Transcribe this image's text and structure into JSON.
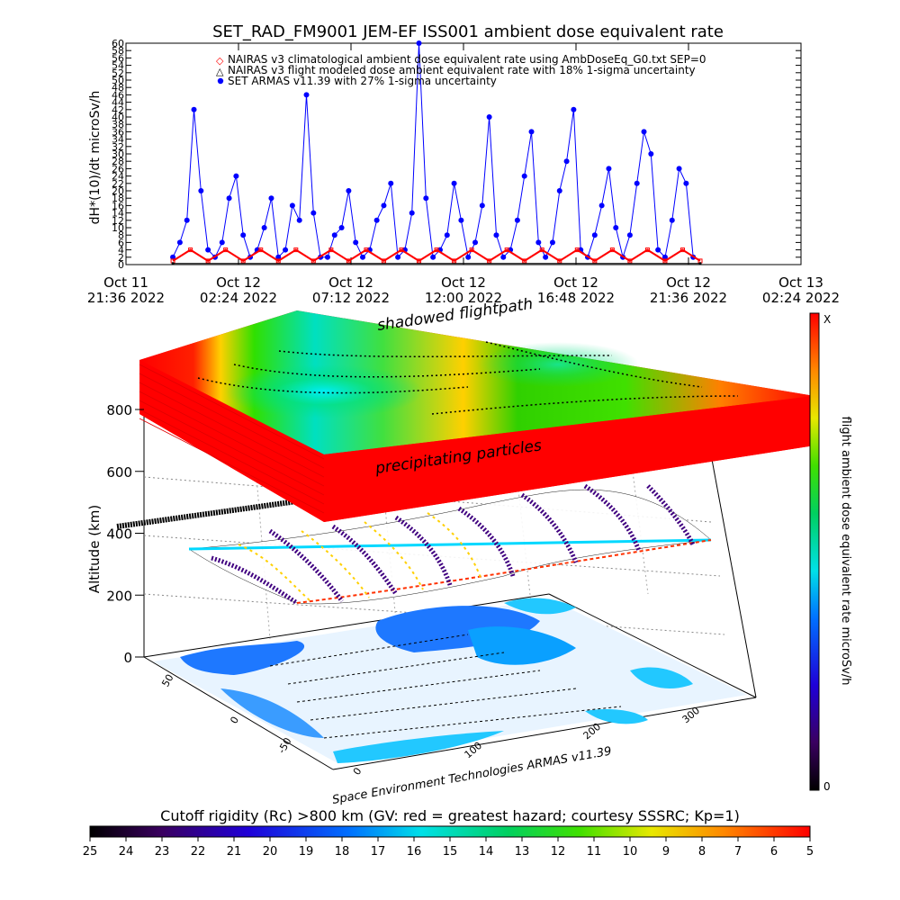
{
  "top_title": "SET_RAD_FM9001  JEM-EF ISS001 ambient dose equivalent rate",
  "chart_data": [
    {
      "type": "line",
      "title": "SET_RAD_FM9001  JEM-EF ISS001 ambient dose equivalent rate",
      "ylabel": "dH*(10)/dt microSv/h",
      "ylim": [
        0,
        60
      ],
      "y_ticks": [
        "0",
        "2",
        "4",
        "6",
        "8",
        "10",
        "12",
        "14",
        "16",
        "18",
        "20",
        "22",
        "24",
        "26",
        "28",
        "30",
        "32",
        "34",
        "36",
        "38",
        "40",
        "42",
        "44",
        "46",
        "48",
        "50",
        "52",
        "54",
        "56",
        "58",
        "60"
      ],
      "x_ticks": [
        {
          "line1": "Oct 11",
          "line2": "21:36 2022"
        },
        {
          "line1": "Oct 12",
          "line2": "02:24 2022"
        },
        {
          "line1": "Oct 12",
          "line2": "07:12 2022"
        },
        {
          "line1": "Oct 12",
          "line2": "12:00 2022"
        },
        {
          "line1": "Oct 12",
          "line2": "16:48 2022"
        },
        {
          "line1": "Oct 12",
          "line2": "21:36 2022"
        },
        {
          "line1": "Oct 13",
          "line2": "02:24 2022"
        }
      ],
      "x_units": "hours since Oct 11 21:36 2022",
      "xlim": [
        0,
        28.8
      ],
      "legend_position": "top",
      "legend": [
        "NAIRAS v3 climatological ambient dose equivalent rate using AmbDoseEq_G0.txt SEP=0",
        "NAIRAS v3 flight modeled dose ambient equivalent rate with 18% 1-sigma uncertainty",
        "SET ARMAS v11.39 with 27% 1-sigma uncertainty"
      ],
      "series": [
        {
          "name": "SET ARMAS v11.39 with 27% 1-sigma uncertainty",
          "color": "#0000ff",
          "x": [
            2.0,
            2.3,
            2.6,
            2.9,
            3.2,
            3.5,
            3.8,
            4.1,
            4.4,
            4.7,
            5.0,
            5.3,
            5.6,
            5.9,
            6.2,
            6.5,
            6.8,
            7.1,
            7.4,
            7.7,
            8.0,
            8.3,
            8.6,
            8.9,
            9.2,
            9.5,
            9.8,
            10.1,
            10.4,
            10.7,
            11.0,
            11.3,
            11.6,
            11.9,
            12.2,
            12.5,
            12.8,
            13.1,
            13.4,
            13.7,
            14.0,
            14.3,
            14.6,
            14.9,
            15.2,
            15.5,
            15.8,
            16.1,
            16.4,
            16.7,
            17.0,
            17.3,
            17.6,
            17.9,
            18.2,
            18.5,
            18.8,
            19.1,
            19.4,
            19.7,
            20.0,
            20.3,
            20.6,
            20.9,
            21.2,
            21.5,
            21.8,
            22.1,
            22.4,
            22.7,
            23.0,
            23.3,
            23.6,
            23.9,
            24.2
          ],
          "y": [
            2,
            6,
            12,
            42,
            20,
            4,
            2,
            6,
            18,
            24,
            8,
            2,
            4,
            10,
            18,
            2,
            4,
            16,
            12,
            46,
            14,
            2,
            2,
            8,
            10,
            20,
            6,
            2,
            4,
            12,
            16,
            22,
            2,
            4,
            14,
            60,
            18,
            2,
            4,
            8,
            22,
            12,
            2,
            6,
            16,
            40,
            8,
            2,
            4,
            12,
            24,
            36,
            6,
            2,
            6,
            20,
            28,
            42,
            4,
            2,
            8,
            16,
            26,
            10,
            2,
            8,
            22,
            36,
            30,
            4,
            2,
            12,
            26,
            22,
            2
          ]
        },
        {
          "name": "NAIRAS v3 flight modeled dose ambient equivalent rate with 18% 1-sigma uncertainty",
          "color": "#ff0000",
          "x": [
            2.0,
            2.75,
            3.5,
            4.25,
            5.0,
            5.75,
            6.5,
            7.25,
            8.0,
            8.75,
            9.5,
            10.25,
            11.0,
            11.75,
            12.5,
            13.25,
            14.0,
            14.75,
            15.5,
            16.25,
            17.0,
            17.75,
            18.5,
            19.25,
            20.0,
            20.75,
            21.5,
            22.25,
            23.0,
            23.75,
            24.5
          ],
          "y": [
            1,
            4,
            1,
            4,
            1,
            4,
            1,
            4,
            1,
            4,
            1,
            4,
            1,
            4,
            1,
            4,
            1,
            4,
            1,
            4,
            1,
            4,
            1,
            4,
            1,
            4,
            1,
            4,
            1,
            4,
            1
          ]
        },
        {
          "name": "NAIRAS v3 climatological ambient dose equivalent rate using AmbDoseEq_G0.txt SEP=0",
          "color": "#000000",
          "x": [
            2.0,
            24.5
          ],
          "y": [
            0.3,
            0.3
          ]
        }
      ]
    },
    {
      "type": "heatmap",
      "title": "",
      "zlabel": "Altitude (km)",
      "z_ticks": [
        "0",
        "200",
        "400",
        "600",
        "800"
      ],
      "lon_ticks": [
        "0",
        "100",
        "200",
        "300"
      ],
      "lat_ticks": [
        "50",
        "0",
        "-50"
      ],
      "annotations": [
        "shadowed flightpath",
        "precipitating particles"
      ],
      "credit": "Space Environment Technologies ARMAS v11.39",
      "colorbar": {
        "label": "flight ambient dose equivalent rate microSv/h",
        "min_label": "0",
        "max_label": "X"
      }
    }
  ],
  "rigidity_bar": {
    "title": "Cutoff rigidity (Rc) >800 km (GV: red = greatest hazard; courtesy SSSRC; Kp=1)",
    "ticks": [
      "25",
      "24",
      "23",
      "22",
      "21",
      "20",
      "19",
      "18",
      "17",
      "16",
      "15",
      "14",
      "13",
      "12",
      "11",
      "10",
      "9",
      "8",
      "7",
      "6",
      "5"
    ]
  }
}
